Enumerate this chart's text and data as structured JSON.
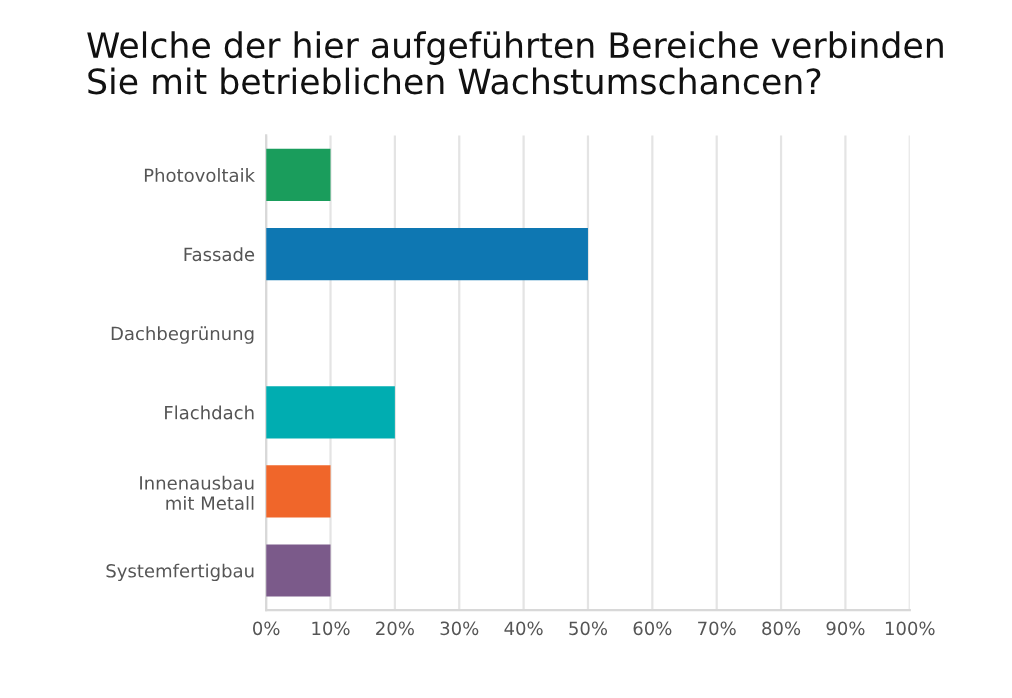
{
  "chart_data": {
    "type": "bar",
    "orientation": "horizontal",
    "title": "Welche der hier aufgeführten Bereiche verbinden\nSie mit betrieblichen Wachstumschancen?",
    "categories": [
      "Photovoltaik",
      "Fassade",
      "Dachbegrünung",
      "Flachdach",
      "Innenausbau\nmit Metall",
      "Systemfertigbau"
    ],
    "values": [
      10,
      50,
      0,
      20,
      10,
      10
    ],
    "colors": [
      "#1a9d5c",
      "#0e77b2",
      null,
      "#00adb1",
      "#f0662a",
      "#7b5a8a"
    ],
    "xlim": [
      0,
      100
    ],
    "xticks": [
      {
        "value": 0,
        "label": "0%"
      },
      {
        "value": 10,
        "label": "10%"
      },
      {
        "value": 20,
        "label": "20%"
      },
      {
        "value": 30,
        "label": "30%"
      },
      {
        "value": 40,
        "label": "40%"
      },
      {
        "value": 50,
        "label": "50%"
      },
      {
        "value": 60,
        "label": "60%"
      },
      {
        "value": 70,
        "label": "70%"
      },
      {
        "value": 80,
        "label": "80%"
      },
      {
        "value": 90,
        "label": "90%"
      },
      {
        "value": 100,
        "label": "100%"
      }
    ],
    "grid": "x",
    "legend": false
  }
}
